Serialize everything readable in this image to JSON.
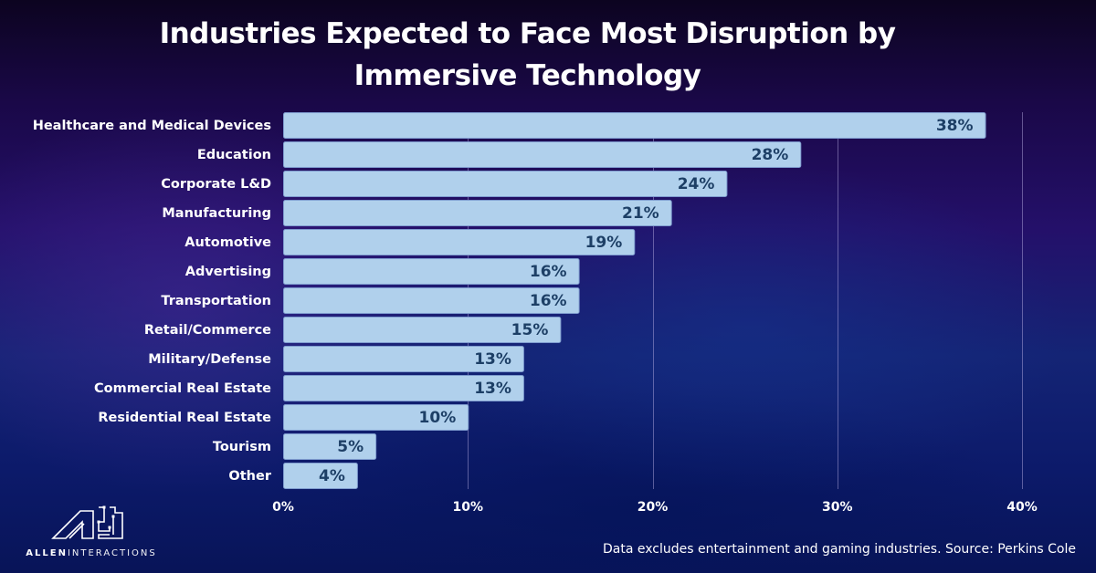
{
  "chart_data": {
    "type": "bar",
    "orientation": "horizontal",
    "title": "Industries Expected to Face Most Disruption by Immersive Technology",
    "title_lines": [
      "Industries Expected to Face Most Disruption by",
      "Immersive Technology"
    ],
    "xlabel": "",
    "ylabel": "",
    "categories": [
      "Healthcare and Medical Devices",
      "Education",
      "Corporate L&D",
      "Manufacturing",
      "Automotive",
      "Advertising",
      "Transportation",
      "Retail/Commerce",
      "Military/Defense",
      "Commercial Real Estate",
      "Residential Real Estate",
      "Tourism",
      "Other"
    ],
    "values": [
      38,
      28,
      24,
      21,
      19,
      16,
      16,
      15,
      13,
      13,
      10,
      5,
      4
    ],
    "value_labels": [
      "38%",
      "28%",
      "24%",
      "21%",
      "19%",
      "16%",
      "16%",
      "15%",
      "13%",
      "13%",
      "10%",
      "5%",
      "4%"
    ],
    "xlim": [
      0,
      40
    ],
    "xticks": [
      0,
      10,
      20,
      30,
      40
    ],
    "xtick_labels": [
      "0%",
      "10%",
      "20%",
      "30%",
      "40%"
    ],
    "grid": "vertical",
    "legend": "none",
    "bar_color": "#b0d0ec",
    "value_label_color": "#1d3f66"
  },
  "footer": {
    "source_note": "Data excludes entertainment and gaming industries. Source: Perkins Cole"
  },
  "logo": {
    "icon": "allen-interactions-ai-logo-icon",
    "brand_bold": "ALLEN",
    "brand_light": "INTERACTIONS"
  }
}
